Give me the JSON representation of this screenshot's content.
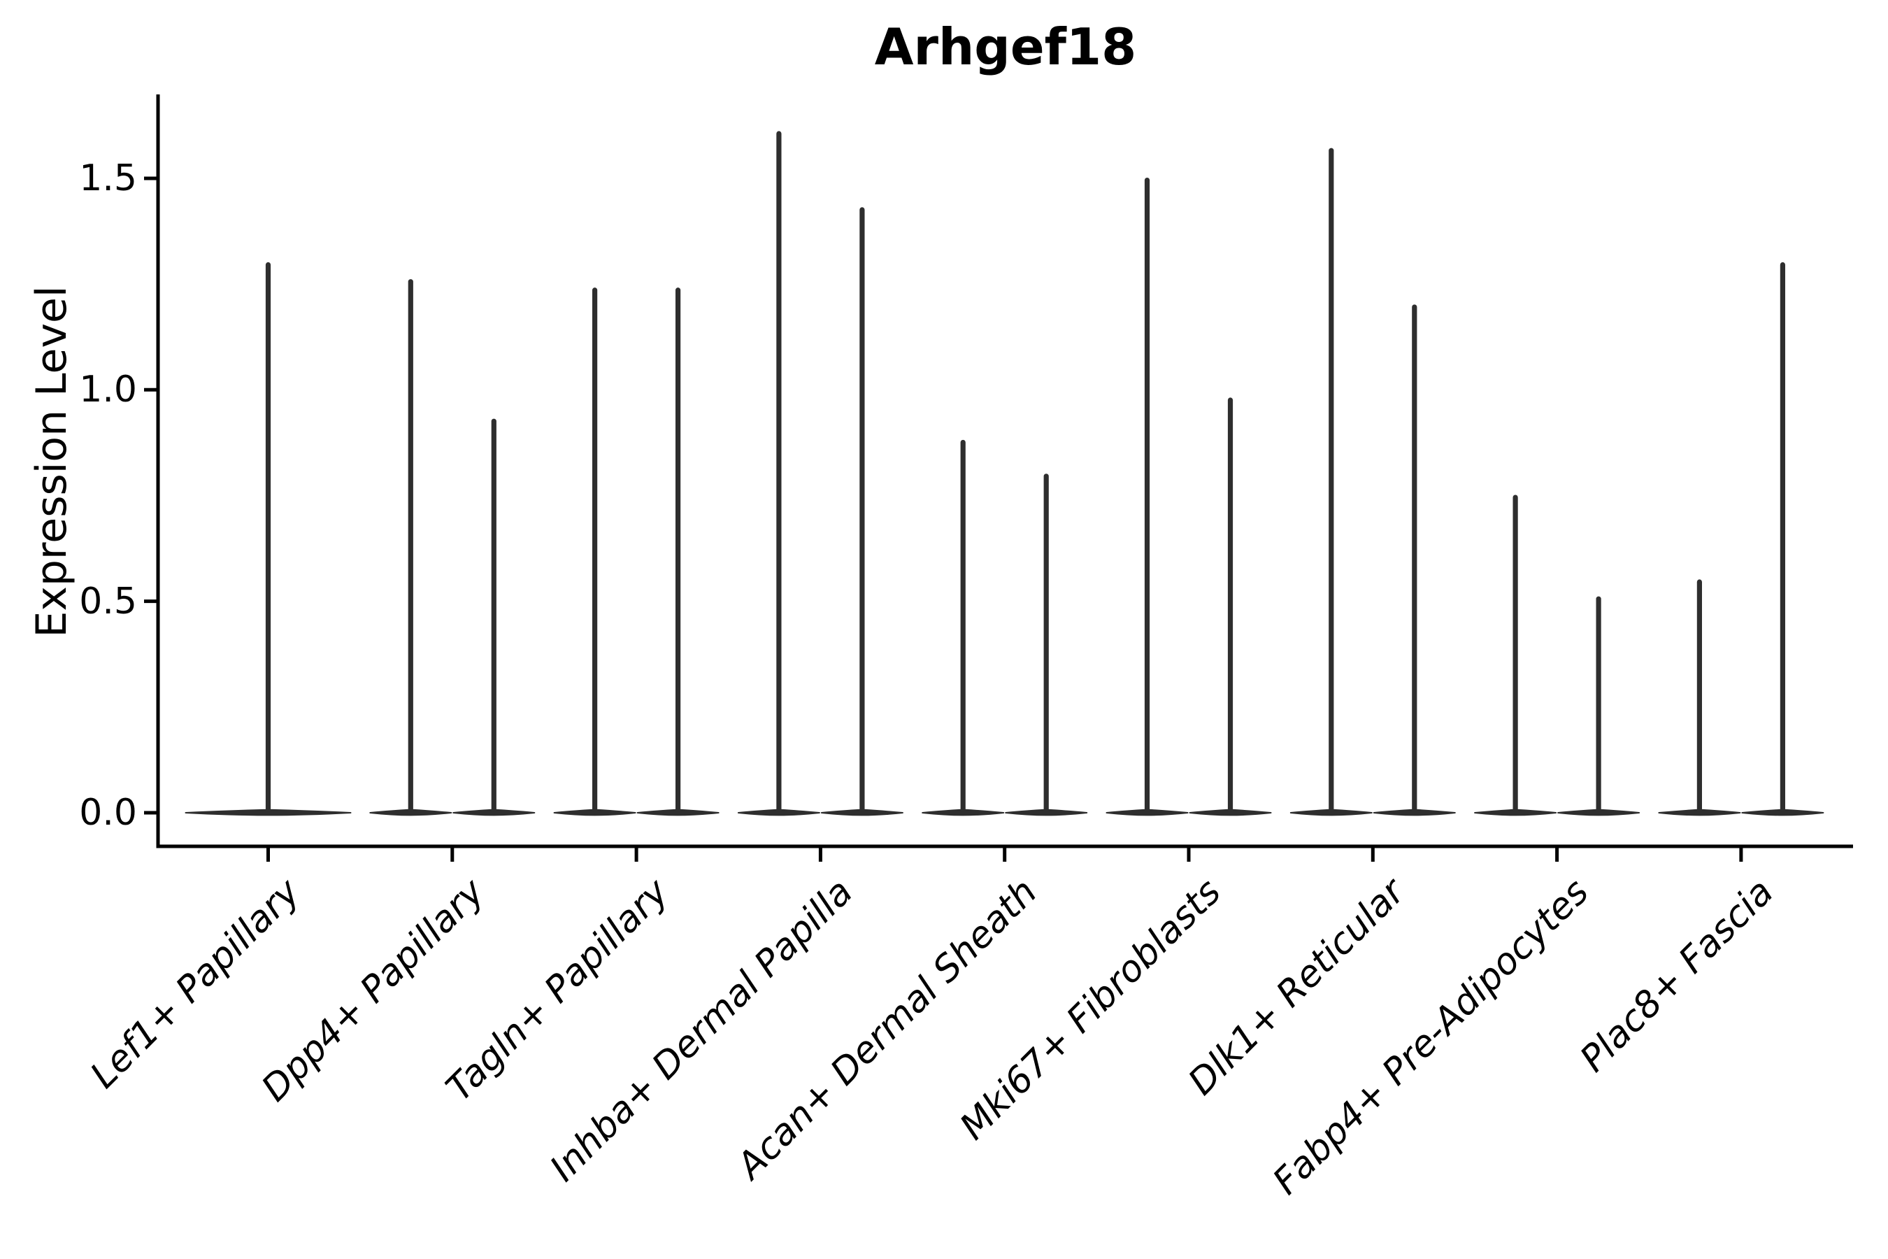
{
  "chart_data": {
    "type": "violin",
    "title": "Arhgef18",
    "ylabel": "Expression Level",
    "xlabel": "",
    "ytick_labels": [
      "0.0",
      "0.5",
      "1.0",
      "1.5"
    ],
    "ytick_values": [
      0.0,
      0.5,
      1.0,
      1.5
    ],
    "ylim": [
      -0.08,
      1.7
    ],
    "grid": false,
    "legend": "none",
    "violin_color": "#2e2e2e",
    "axis_color": "#000000",
    "background_color": "#ffffff",
    "categories": [
      "Lef1+ Papillary",
      "Dpp4+ Papillary",
      "Tagln+ Papillary",
      "Inhba+ Dermal Papilla",
      "Acan+ Dermal Sheath",
      "Mki67+ Fibroblasts",
      "Dlk1+ Reticular",
      "Fabp4+ Pre-Adipocytes",
      "Plac8+ Fascia"
    ],
    "series_note": "each category shows 1-2 narrow violins; values are the max Expression Level reached by each violin spike, all violins have their density mass concentrated at 0",
    "violin_max_per_category": [
      [
        1.3
      ],
      [
        1.26,
        0.93
      ],
      [
        1.24,
        1.24
      ],
      [
        1.61,
        1.43
      ],
      [
        0.88,
        0.8
      ],
      [
        1.5,
        0.98
      ],
      [
        1.57,
        1.2
      ],
      [
        0.75,
        0.51
      ],
      [
        0.55,
        1.3
      ]
    ]
  }
}
